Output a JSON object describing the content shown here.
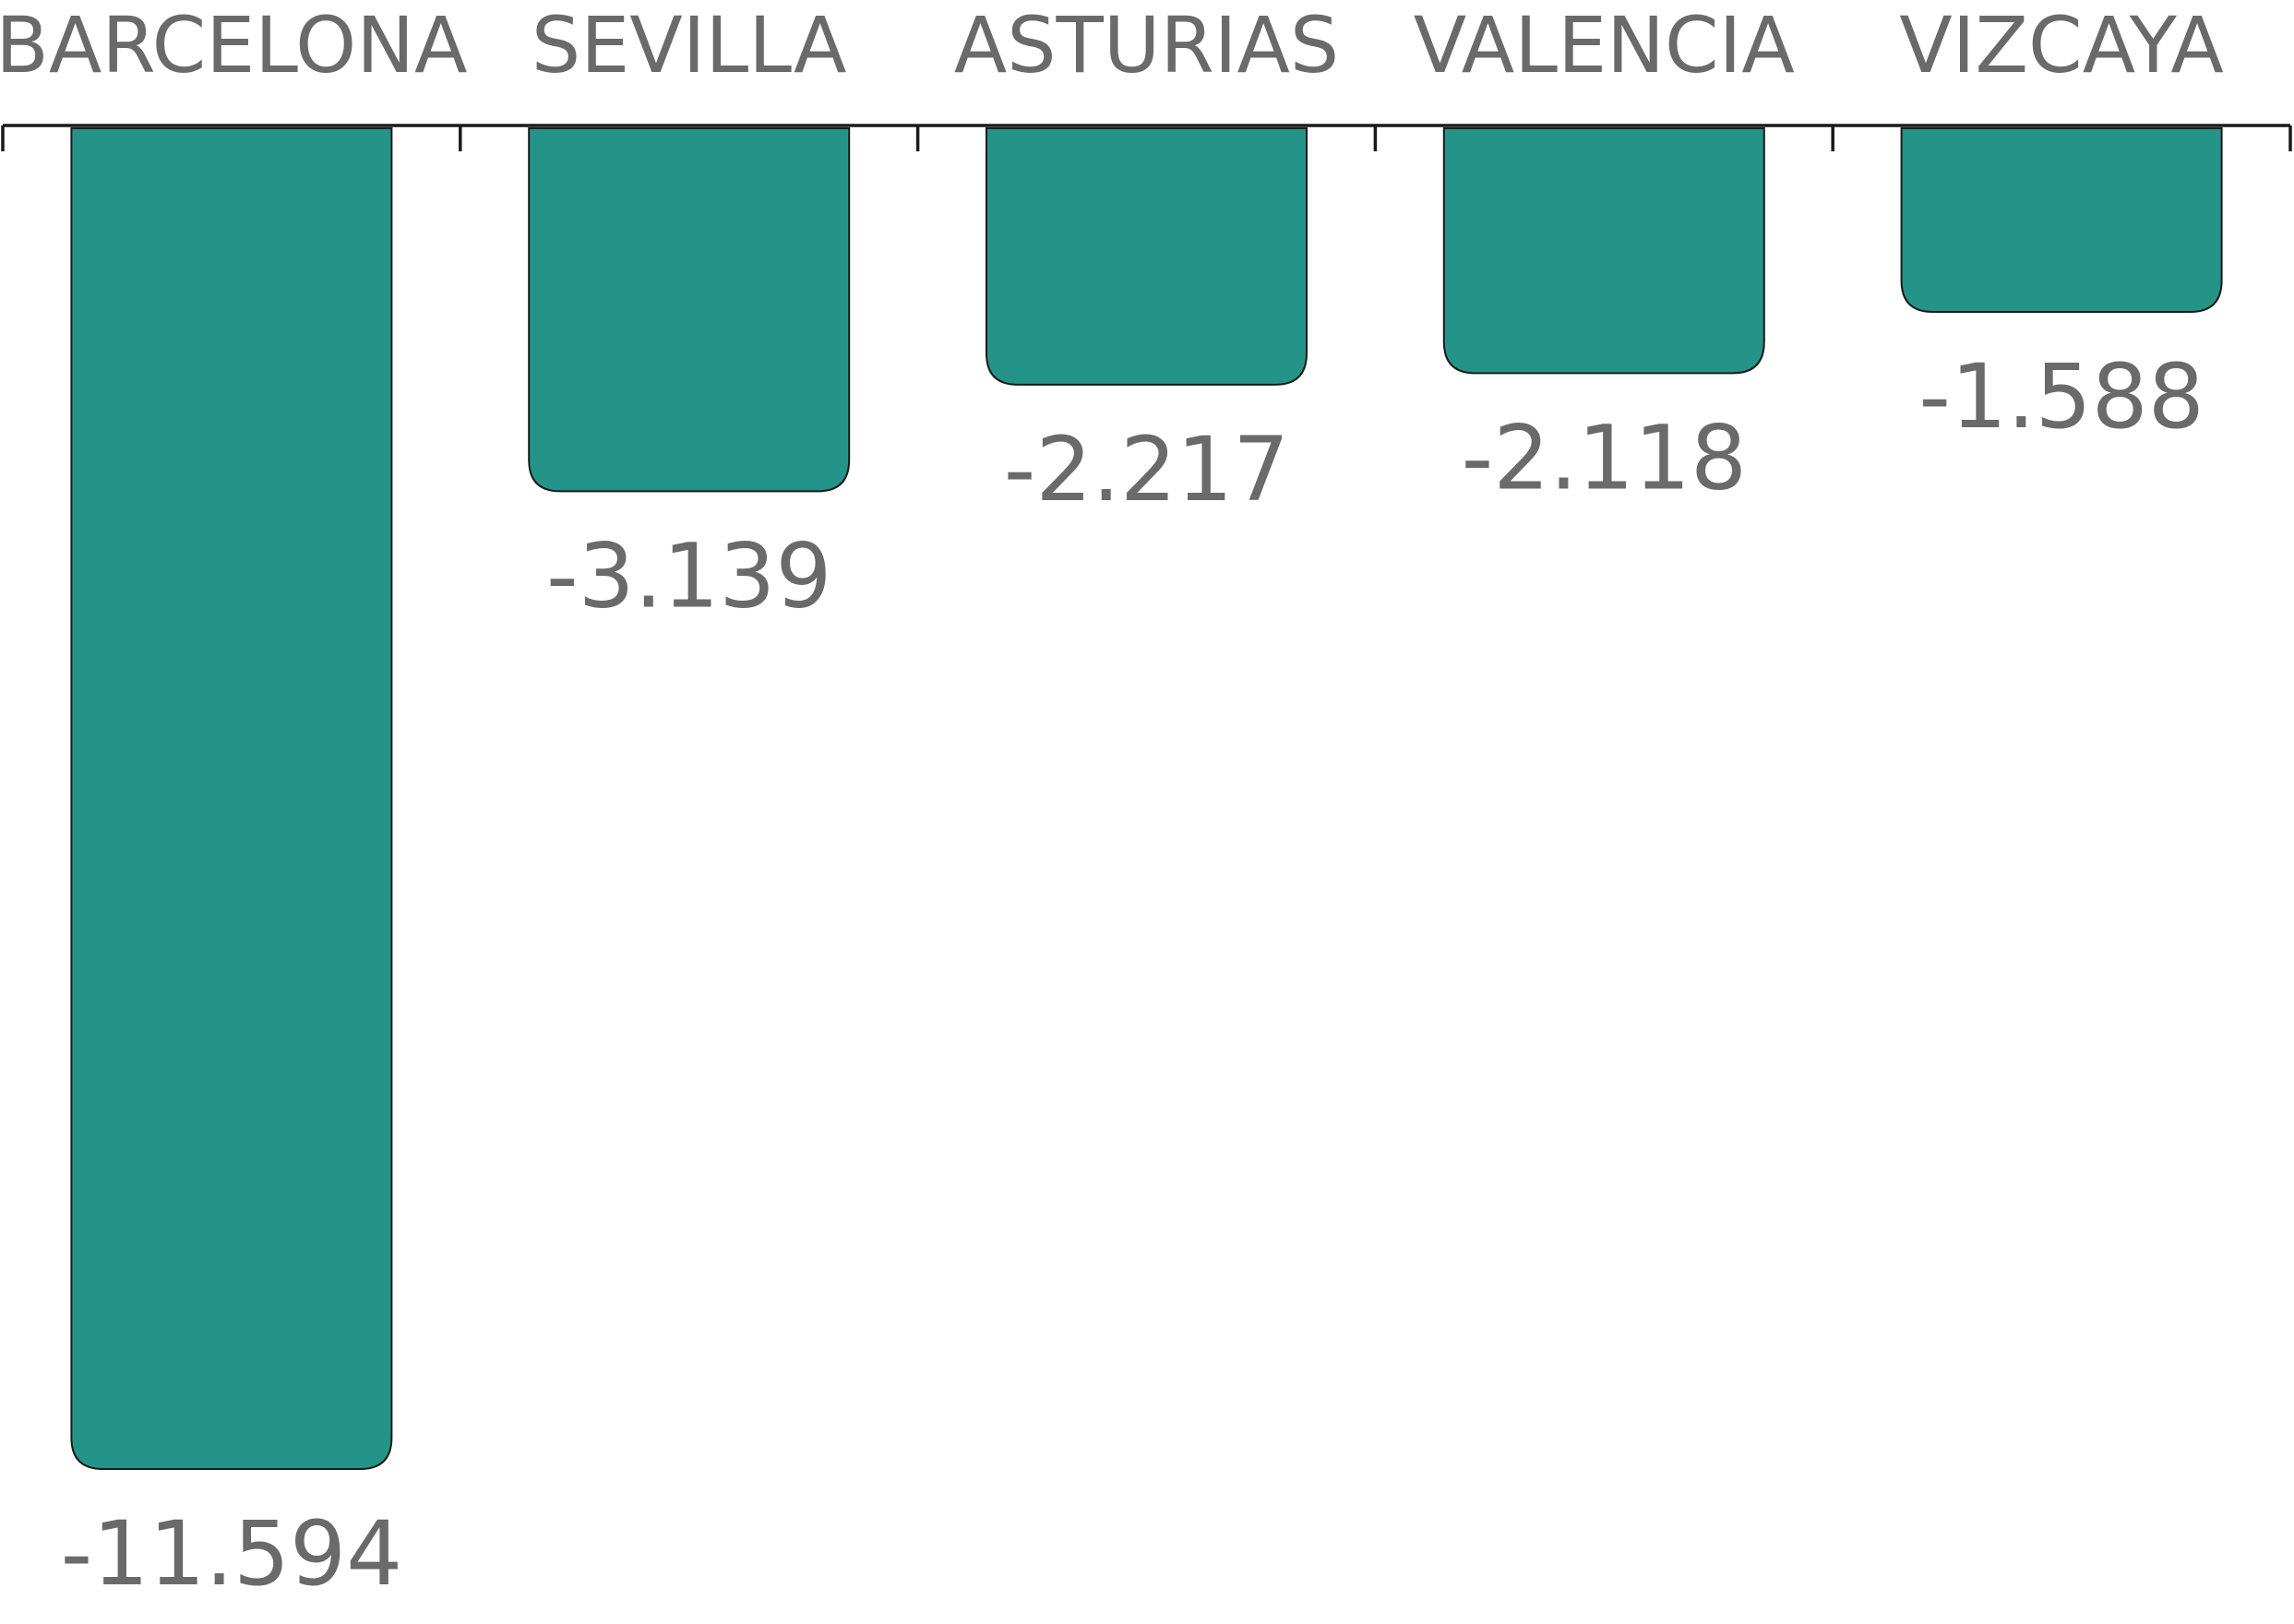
{
  "chart_data": {
    "type": "bar",
    "orientation": "vertical",
    "categories": [
      "BARCELONA",
      "SEVILLA",
      "ASTURIAS",
      "VALENCIA",
      "VIZCAYA"
    ],
    "values": [
      -11594,
      -3139,
      -2217,
      -2118,
      -1588
    ],
    "value_labels": [
      "-11.594",
      "-3.139",
      "-2.217",
      "-2.118",
      "-1.588"
    ],
    "title": "",
    "xlabel": "",
    "ylabel": "",
    "category_axis_position": "top",
    "ylim": [
      -11594,
      0
    ],
    "grid": false,
    "legend": "none",
    "colors": {
      "bar": "#259488",
      "text": "#6a6a6a",
      "axis": "#1a1a1a"
    }
  }
}
